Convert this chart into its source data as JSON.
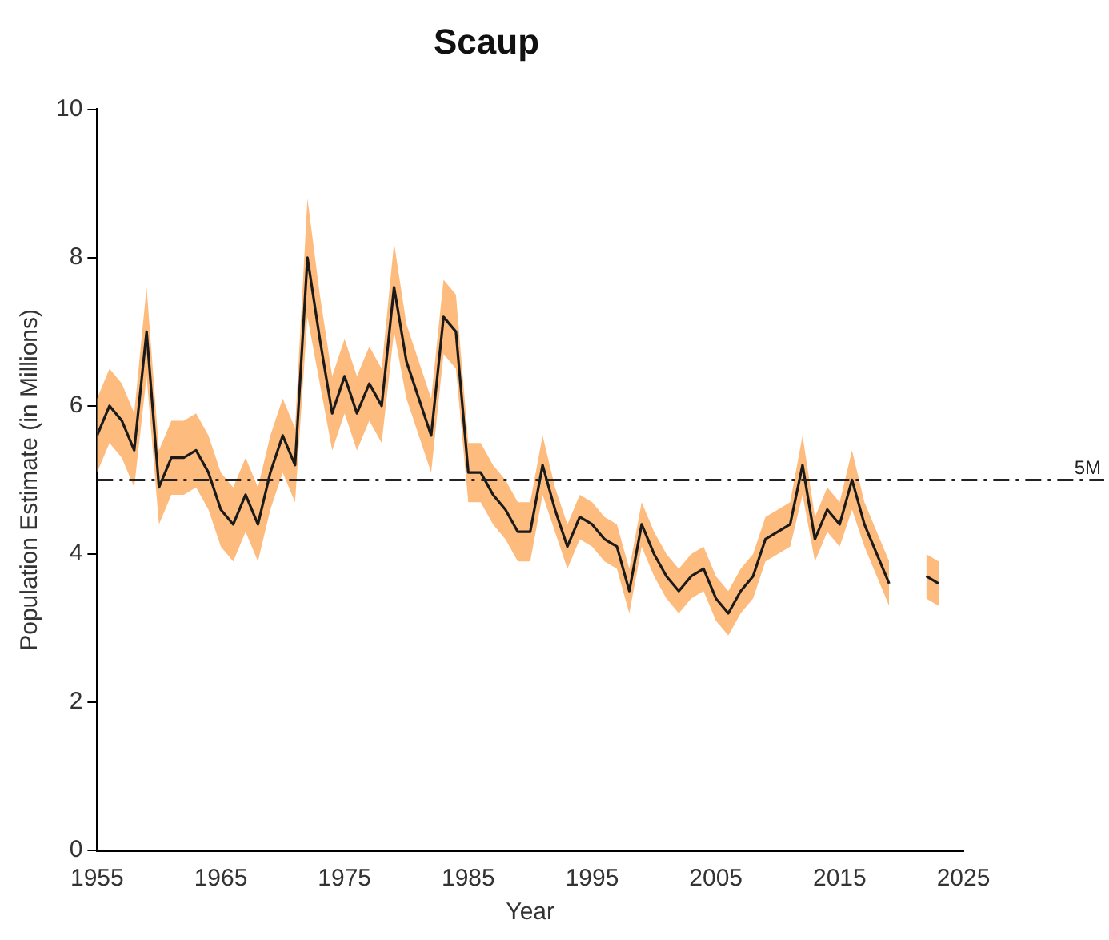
{
  "chart_data": {
    "type": "line",
    "title": "Scaup",
    "xlabel": "Year",
    "ylabel": "Population Estimate (in Millions)",
    "x": [
      1955,
      1956,
      1957,
      1958,
      1959,
      1960,
      1961,
      1962,
      1963,
      1964,
      1965,
      1966,
      1967,
      1968,
      1969,
      1970,
      1971,
      1972,
      1973,
      1974,
      1975,
      1976,
      1977,
      1978,
      1979,
      1980,
      1981,
      1982,
      1983,
      1984,
      1985,
      1986,
      1987,
      1988,
      1989,
      1990,
      1991,
      1992,
      1993,
      1994,
      1995,
      1996,
      1997,
      1998,
      1999,
      2000,
      2001,
      2002,
      2003,
      2004,
      2005,
      2006,
      2007,
      2008,
      2009,
      2010,
      2011,
      2012,
      2013,
      2014,
      2015,
      2016,
      2017,
      2018,
      2019,
      2020,
      2021,
      2022,
      2023
    ],
    "series": [
      {
        "color": "#1a1a1a",
        "values": [
          5.6,
          6.0,
          5.8,
          5.4,
          7.0,
          4.9,
          5.3,
          5.3,
          5.4,
          5.1,
          4.6,
          4.4,
          4.8,
          4.4,
          5.1,
          5.6,
          5.2,
          8.0,
          6.9,
          5.9,
          6.4,
          5.9,
          6.3,
          6.0,
          7.6,
          6.6,
          6.1,
          5.6,
          7.2,
          7.0,
          5.1,
          5.1,
          4.8,
          4.6,
          4.3,
          4.3,
          5.2,
          4.6,
          4.1,
          4.5,
          4.4,
          4.2,
          4.1,
          3.5,
          4.4,
          4.0,
          3.7,
          3.5,
          3.7,
          3.8,
          3.4,
          3.2,
          3.5,
          3.7,
          4.2,
          4.3,
          4.4,
          5.2,
          4.2,
          4.6,
          4.4,
          5.0,
          4.4,
          4.0,
          3.6,
          null,
          null,
          3.7,
          3.6
        ],
        "lower": [
          5.1,
          5.5,
          5.3,
          4.9,
          6.4,
          4.4,
          4.8,
          4.8,
          4.9,
          4.6,
          4.1,
          3.9,
          4.3,
          3.9,
          4.6,
          5.1,
          4.7,
          7.2,
          6.3,
          5.4,
          5.9,
          5.4,
          5.8,
          5.5,
          7.0,
          6.1,
          5.6,
          5.1,
          6.7,
          6.5,
          4.7,
          4.7,
          4.4,
          4.2,
          3.9,
          3.9,
          4.8,
          4.3,
          3.8,
          4.2,
          4.1,
          3.9,
          3.8,
          3.2,
          4.1,
          3.7,
          3.4,
          3.2,
          3.4,
          3.5,
          3.1,
          2.9,
          3.2,
          3.4,
          3.9,
          4.0,
          4.1,
          4.8,
          3.9,
          4.3,
          4.1,
          4.6,
          4.1,
          3.7,
          3.3,
          null,
          null,
          3.4,
          3.3
        ],
        "upper": [
          6.1,
          6.5,
          6.3,
          5.9,
          7.6,
          5.4,
          5.8,
          5.8,
          5.9,
          5.6,
          5.1,
          4.9,
          5.3,
          4.9,
          5.6,
          6.1,
          5.7,
          8.8,
          7.5,
          6.4,
          6.9,
          6.4,
          6.8,
          6.5,
          8.2,
          7.1,
          6.6,
          6.1,
          7.7,
          7.5,
          5.5,
          5.5,
          5.2,
          5.0,
          4.7,
          4.7,
          5.6,
          4.9,
          4.4,
          4.8,
          4.7,
          4.5,
          4.4,
          3.8,
          4.7,
          4.3,
          4.0,
          3.8,
          4.0,
          4.1,
          3.7,
          3.5,
          3.8,
          4.0,
          4.5,
          4.6,
          4.7,
          5.6,
          4.5,
          4.9,
          4.7,
          5.4,
          4.7,
          4.3,
          3.9,
          null,
          null,
          4.0,
          3.9
        ]
      }
    ],
    "xlim": [
      1955,
      2025
    ],
    "xticks": [
      1955,
      1965,
      1975,
      1985,
      1995,
      2005,
      2015,
      2025
    ],
    "ylim": [
      0,
      10
    ],
    "yticks": [
      0,
      2,
      4,
      6,
      8,
      10
    ],
    "ref_lines": [
      {
        "axis": "y",
        "value": 5,
        "label": "5M",
        "line_style": "dashdot"
      }
    ],
    "grid": false,
    "legend": false,
    "marker": "none",
    "line_style": "solid"
  }
}
